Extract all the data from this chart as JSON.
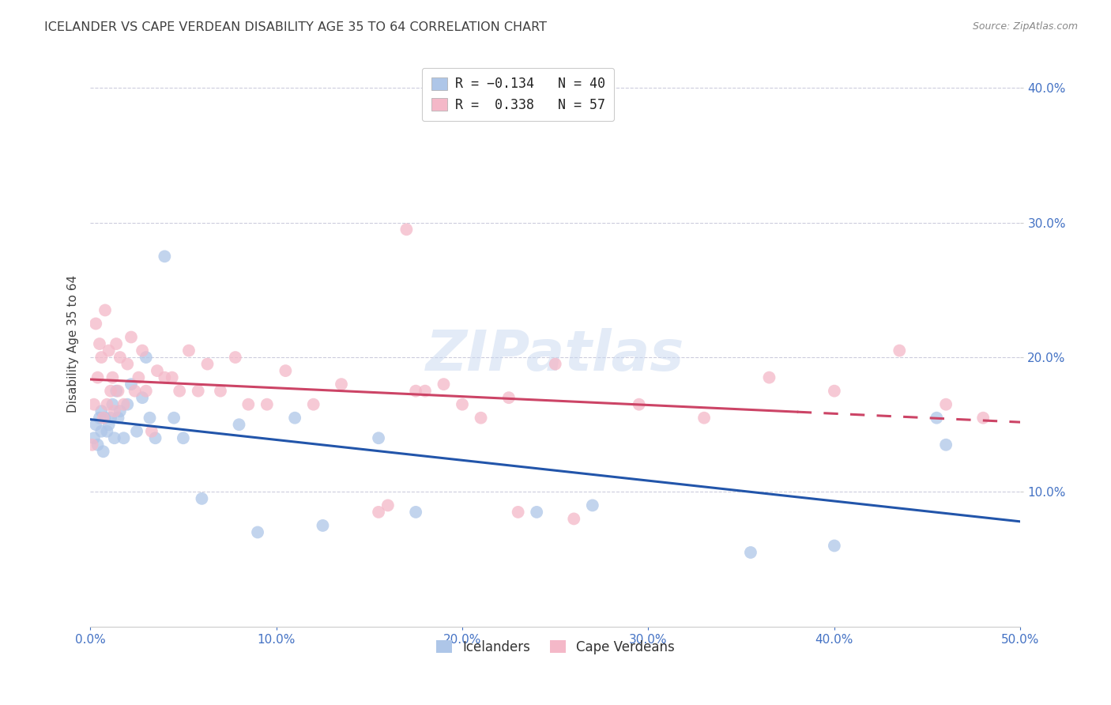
{
  "title": "ICELANDER VS CAPE VERDEAN DISABILITY AGE 35 TO 64 CORRELATION CHART",
  "source": "Source: ZipAtlas.com",
  "ylabel": "Disability Age 35 to 64",
  "xlim": [
    0.0,
    0.5
  ],
  "ylim": [
    0.0,
    0.42
  ],
  "xticks": [
    0.0,
    0.1,
    0.2,
    0.3,
    0.4,
    0.5
  ],
  "yticks": [
    0.1,
    0.2,
    0.3,
    0.4
  ],
  "ytick_labels": [
    "10.0%",
    "20.0%",
    "30.0%",
    "40.0%"
  ],
  "xtick_labels": [
    "0.0%",
    "10.0%",
    "20.0%",
    "30.0%",
    "40.0%",
    "50.0%"
  ],
  "legend_corr_entries": [
    {
      "label": "R = -0.134   N = 40",
      "color": "#aec6e8"
    },
    {
      "label": "R =  0.338   N = 57",
      "color": "#f4b8c8"
    }
  ],
  "legend_labels": [
    "Icelanders",
    "Cape Verdeans"
  ],
  "watermark": "ZIPatlas",
  "icelanders_color": "#aec6e8",
  "cape_verdeans_color": "#f4b8c8",
  "icelander_line_color": "#2255aa",
  "cape_verdean_line_color": "#cc4466",
  "grid_color": "#ccccdd",
  "background_color": "#ffffff",
  "title_color": "#404040",
  "axis_color": "#4472c4",
  "icelanders_x": [
    0.002,
    0.003,
    0.004,
    0.005,
    0.006,
    0.006,
    0.007,
    0.008,
    0.009,
    0.01,
    0.011,
    0.012,
    0.013,
    0.014,
    0.015,
    0.016,
    0.018,
    0.02,
    0.022,
    0.025,
    0.028,
    0.03,
    0.032,
    0.035,
    0.04,
    0.045,
    0.05,
    0.06,
    0.08,
    0.09,
    0.11,
    0.125,
    0.155,
    0.175,
    0.24,
    0.27,
    0.355,
    0.4,
    0.455,
    0.46
  ],
  "icelanders_y": [
    0.14,
    0.15,
    0.135,
    0.155,
    0.145,
    0.16,
    0.13,
    0.155,
    0.145,
    0.15,
    0.155,
    0.165,
    0.14,
    0.175,
    0.155,
    0.16,
    0.14,
    0.165,
    0.18,
    0.145,
    0.17,
    0.2,
    0.155,
    0.14,
    0.275,
    0.155,
    0.14,
    0.095,
    0.15,
    0.07,
    0.155,
    0.075,
    0.14,
    0.085,
    0.085,
    0.09,
    0.055,
    0.06,
    0.155,
    0.135
  ],
  "cape_verdeans_x": [
    0.001,
    0.002,
    0.003,
    0.004,
    0.005,
    0.006,
    0.007,
    0.008,
    0.009,
    0.01,
    0.011,
    0.012,
    0.013,
    0.014,
    0.015,
    0.016,
    0.018,
    0.02,
    0.022,
    0.024,
    0.026,
    0.028,
    0.03,
    0.033,
    0.036,
    0.04,
    0.044,
    0.048,
    0.053,
    0.058,
    0.063,
    0.07,
    0.078,
    0.085,
    0.095,
    0.105,
    0.12,
    0.135,
    0.155,
    0.175,
    0.2,
    0.23,
    0.26,
    0.295,
    0.33,
    0.365,
    0.4,
    0.435,
    0.46,
    0.48,
    0.16,
    0.17,
    0.18,
    0.19,
    0.21,
    0.225,
    0.25
  ],
  "cape_verdeans_y": [
    0.135,
    0.165,
    0.225,
    0.185,
    0.21,
    0.2,
    0.155,
    0.235,
    0.165,
    0.205,
    0.175,
    0.185,
    0.16,
    0.21,
    0.175,
    0.2,
    0.165,
    0.195,
    0.215,
    0.175,
    0.185,
    0.205,
    0.175,
    0.145,
    0.19,
    0.185,
    0.185,
    0.175,
    0.205,
    0.175,
    0.195,
    0.175,
    0.2,
    0.165,
    0.165,
    0.19,
    0.165,
    0.18,
    0.085,
    0.175,
    0.165,
    0.085,
    0.08,
    0.165,
    0.155,
    0.185,
    0.175,
    0.205,
    0.165,
    0.155,
    0.09,
    0.295,
    0.175,
    0.18,
    0.155,
    0.17,
    0.195
  ],
  "cape_solid_xlim": [
    0.0,
    0.38
  ],
  "cape_dashed_xlim": [
    0.38,
    0.5
  ]
}
